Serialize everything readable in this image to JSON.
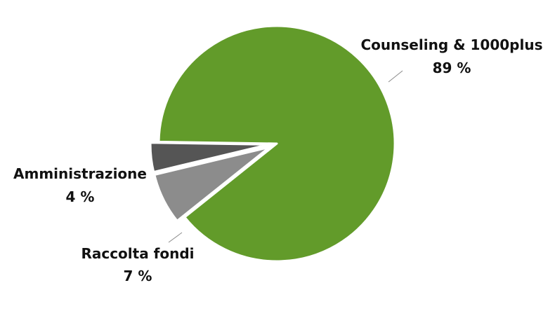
{
  "chart_data": {
    "type": "pie",
    "slices": [
      {
        "name": "Counseling & 1000plus",
        "value": 89,
        "value_label": "89 %",
        "color": "#629B2A",
        "exploded": false
      },
      {
        "name": "Raccolta fondi",
        "value": 7,
        "value_label": "7 %",
        "color": "#8C8C8C",
        "exploded": true
      },
      {
        "name": "Amministrazione",
        "value": 4,
        "value_label": "4 %",
        "color": "#555555",
        "exploded": true
      }
    ],
    "legend": "none",
    "data_labels": "outside, name and percent"
  }
}
